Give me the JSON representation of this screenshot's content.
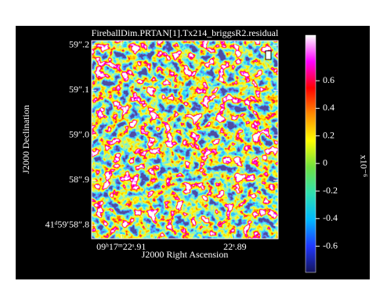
{
  "chart_data": {
    "type": "image",
    "title": "FireballDim.PRTAN[1].Tx214_briggsR2.residual",
    "xlabel": "J2000 Right Ascension",
    "ylabel": "J2000 Declination",
    "xlim": [
      22.9152,
      22.8824
    ],
    "xticks": [
      {
        "value": 22.91,
        "label": "09ʰ17ᵐ22ˢ.91"
      },
      {
        "value": 22.89,
        "label": "22ˢ.89"
      }
    ],
    "ylim": [
      58.77,
      59.21
    ],
    "yticks": [
      {
        "value": 58.8,
        "label": "41ᵈ59′58″.8"
      },
      {
        "value": 58.9,
        "label": "58″.9"
      },
      {
        "value": 59.0,
        "label": "59″.0"
      },
      {
        "value": 59.1,
        "label": "59″.1"
      },
      {
        "value": 59.2,
        "label": "59″.2"
      }
    ],
    "colorbar": {
      "label": "x10⁻⁶",
      "lim": [
        -0.79,
        0.93
      ],
      "ticks": [
        -0.6,
        -0.4,
        -0.2,
        0,
        0.2,
        0.4,
        0.6
      ],
      "colormap": [
        "#14145a",
        "#2038ff",
        "#00b8ff",
        "#30e0b0",
        "#70e040",
        "#ffff00",
        "#ff8c00",
        "#ff0000",
        "#ff00ff",
        "#ffffff"
      ]
    }
  }
}
